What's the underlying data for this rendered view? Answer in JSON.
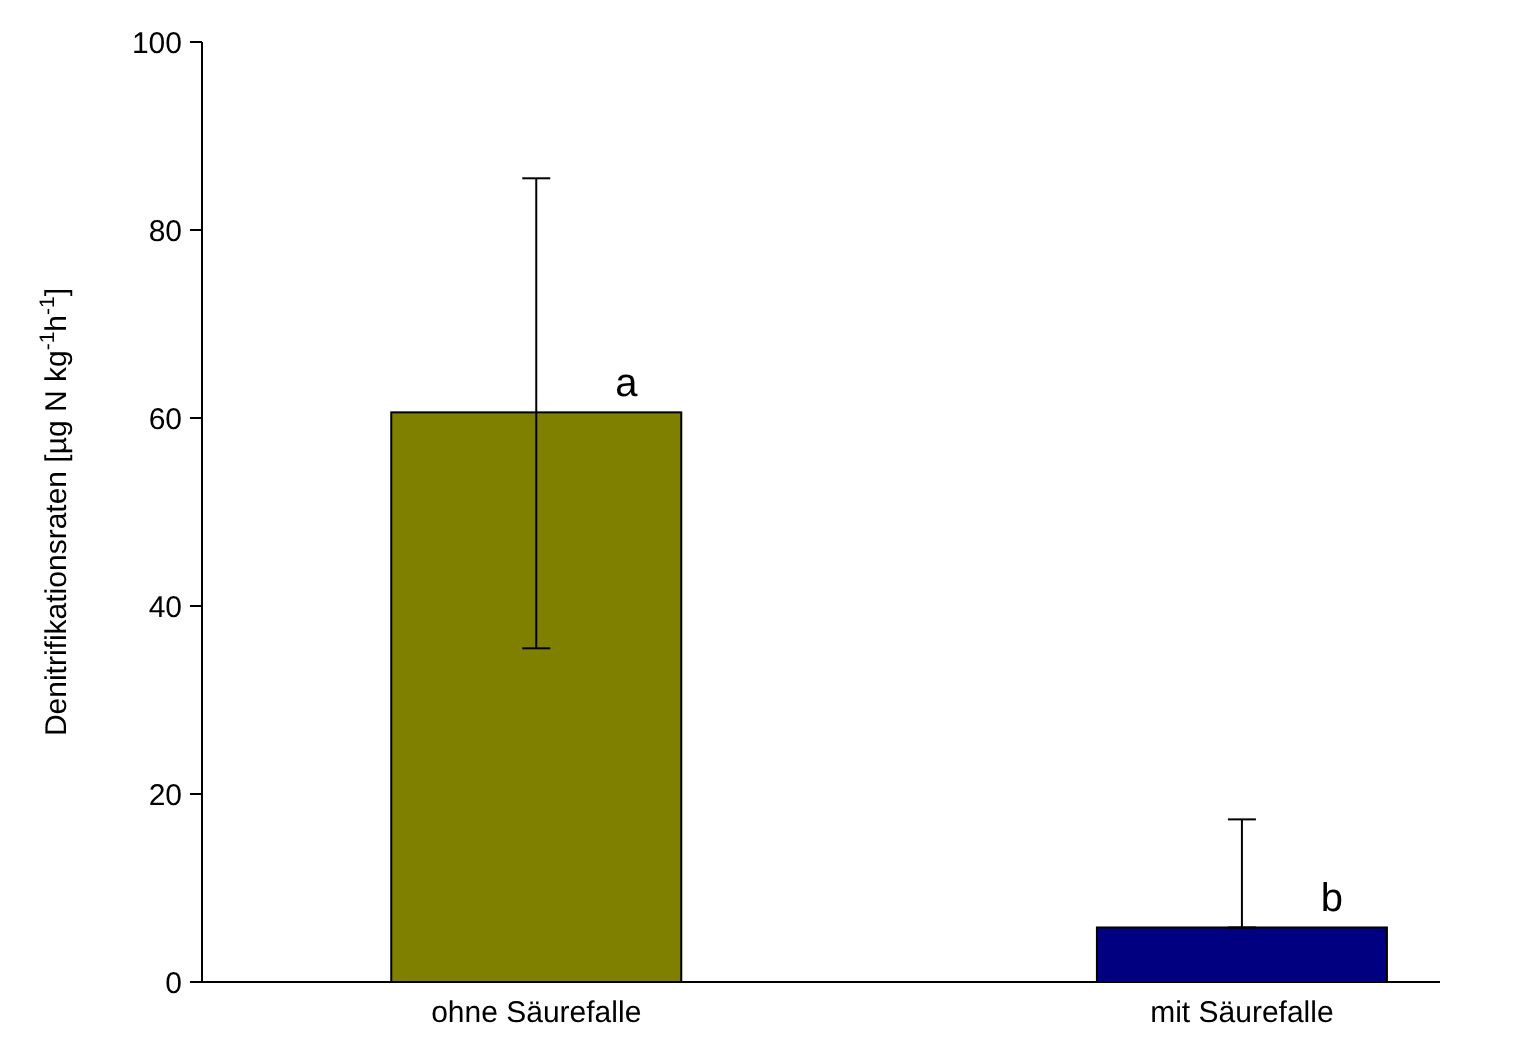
{
  "chart_data": {
    "type": "bar",
    "ylabel": "Denitrifikationsraten [µg N kg$^{-1}$h$^{-1}$]",
    "categories": [
      "ohne Säurefalle",
      "mit Säurefalle"
    ],
    "values": [
      60.6,
      5.8
    ],
    "colors": [
      "#808000",
      "#000080"
    ],
    "errors": [
      [
        35.5,
        85.5
      ],
      [
        5.8,
        17.3
      ]
    ],
    "ylim": [
      0,
      100
    ],
    "yticks": [
      0,
      20,
      40,
      60,
      80,
      100
    ],
    "grid": false,
    "annotations": [
      {
        "text": "a",
        "x": "ohne Säurefalle",
        "y": 60.6
      },
      {
        "text": "b",
        "x": "mit Säurefalle",
        "y": 5.8
      }
    ]
  }
}
